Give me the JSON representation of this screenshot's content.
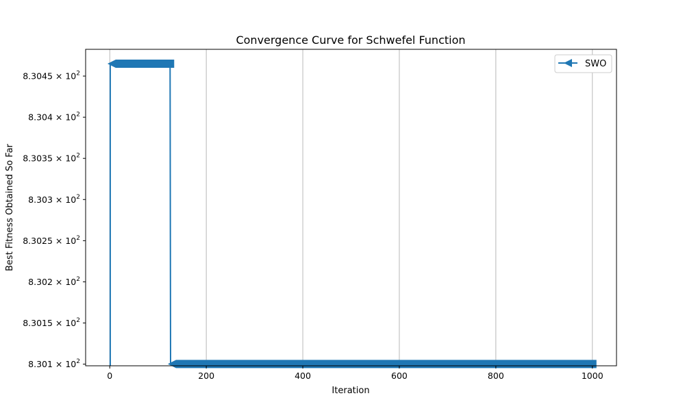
{
  "chart_data": {
    "type": "line",
    "title": "Convergence Curve for Schwefel Function",
    "xlabel": "Iteration",
    "ylabel": "Best Fitness Obtained So Far",
    "xlim": [
      -50,
      1050
    ],
    "ylim": [
      830.098,
      830.4825
    ],
    "x_ticks": [
      0,
      200,
      400,
      600,
      800,
      1000
    ],
    "x_tick_labels": [
      "0",
      "200",
      "400",
      "600",
      "800",
      "1000"
    ],
    "y_ticks": [
      830.1,
      830.15,
      830.2,
      830.25,
      830.3,
      830.35,
      830.4,
      830.45
    ],
    "y_tick_labels": [
      {
        "mantissa": "8.301",
        "base": "10",
        "exp": "2"
      },
      {
        "mantissa": "8.3015",
        "base": "10",
        "exp": "2"
      },
      {
        "mantissa": "8.302",
        "base": "10",
        "exp": "2"
      },
      {
        "mantissa": "8.3025",
        "base": "10",
        "exp": "2"
      },
      {
        "mantissa": "8.303",
        "base": "10",
        "exp": "2"
      },
      {
        "mantissa": "8.3035",
        "base": "10",
        "exp": "2"
      },
      {
        "mantissa": "8.304",
        "base": "10",
        "exp": "2"
      },
      {
        "mantissa": "8.3045",
        "base": "10",
        "exp": "2"
      }
    ],
    "grid": "vertical",
    "legend_position": "top-right",
    "series": [
      {
        "name": "SWO",
        "color": "#1f77b4",
        "marker": "left-triangle",
        "segments": [
          {
            "x_start": 1,
            "x_end": 125,
            "y": 830.465
          },
          {
            "x_start": 126,
            "x_end": 1000,
            "y": 830.1002
          }
        ]
      }
    ]
  }
}
